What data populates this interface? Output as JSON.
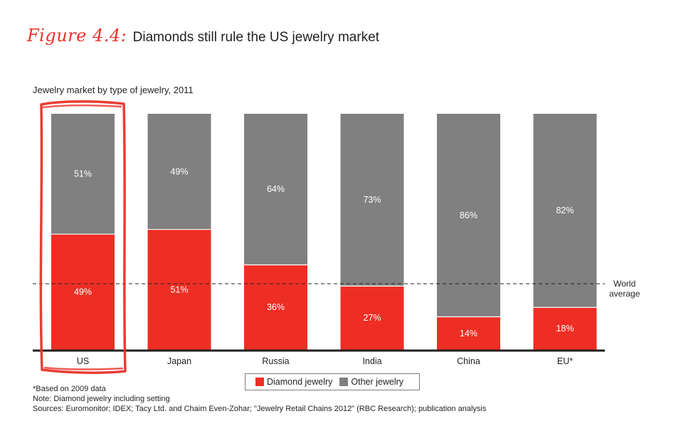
{
  "figure": {
    "label": "Figure 4.4:",
    "title": "Diamonds still rule the US jewelry market"
  },
  "chart_data": {
    "type": "bar",
    "stacked": true,
    "normalized_percent": true,
    "subtitle": "Jewelry market by type of jewelry, 2011",
    "categories": [
      "US",
      "Japan",
      "Russia",
      "India",
      "China",
      "EU*"
    ],
    "series": [
      {
        "name": "Diamond jewelry",
        "color": "#ee2e24",
        "values": [
          49,
          51,
          36,
          27,
          14,
          18
        ]
      },
      {
        "name": "Other jewelry",
        "color": "#808080",
        "values": [
          51,
          49,
          64,
          73,
          86,
          82
        ]
      }
    ],
    "value_suffix": "%",
    "ylim": [
      0,
      100
    ],
    "reference_line": {
      "label_line1": "World",
      "label_line2": "average",
      "value": 28
    },
    "highlight_category": "US",
    "legend_position": "bottom-center"
  },
  "legend": {
    "diamond": "Diamond jewelry",
    "other": "Other jewelry"
  },
  "notes": [
    "*Based on 2009 data",
    "Note: Diamond jewelry including setting",
    "Sources: Euromonitor; IDEX; Tacy Ltd. and Chaim Even-Zohar; \"Jewelry Retail Chains 2012\" (RBC Research); publication analysis"
  ]
}
